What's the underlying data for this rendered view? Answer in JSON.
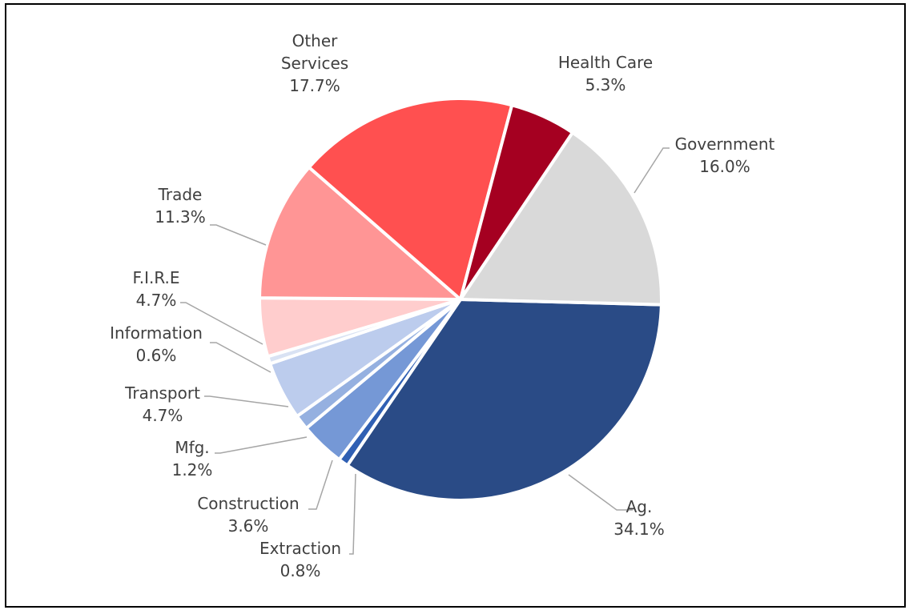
{
  "chart_data": {
    "type": "pie",
    "title": "",
    "legend": "none",
    "slices": [
      {
        "name": "Ag.",
        "label_lines": [
          "Ag."
        ],
        "value": 34.1,
        "value_label": "34.1%",
        "color": "#2a4b86"
      },
      {
        "name": "Extraction",
        "label_lines": [
          "Extraction"
        ],
        "value": 0.8,
        "value_label": "0.8%",
        "color": "#2f5fb3"
      },
      {
        "name": "Construction",
        "label_lines": [
          "Construction"
        ],
        "value": 3.6,
        "value_label": "3.6%",
        "color": "#7598d6"
      },
      {
        "name": "Mfg.",
        "label_lines": [
          "Mfg."
        ],
        "value": 1.2,
        "value_label": "1.2%",
        "color": "#95b0e0"
      },
      {
        "name": "Transport",
        "label_lines": [
          "Transport"
        ],
        "value": 4.7,
        "value_label": "4.7%",
        "color": "#bccced"
      },
      {
        "name": "Information",
        "label_lines": [
          "Information"
        ],
        "value": 0.6,
        "value_label": "0.6%",
        "color": "#d9e2f3"
      },
      {
        "name": "F.I.R.E",
        "label_lines": [
          "F.I.R.E"
        ],
        "value": 4.7,
        "value_label": "4.7%",
        "color": "#ffcdcd"
      },
      {
        "name": "Trade",
        "label_lines": [
          "Trade"
        ],
        "value": 11.3,
        "value_label": "11.3%",
        "color": "#ff9595"
      },
      {
        "name": "Other Services",
        "label_lines": [
          "Other",
          "Services"
        ],
        "value": 17.7,
        "value_label": "17.7%",
        "color": "#ff5050"
      },
      {
        "name": "Health Care",
        "label_lines": [
          "Health Care"
        ],
        "value": 5.3,
        "value_label": "5.3%",
        "color": "#a50021"
      },
      {
        "name": "Government",
        "label_lines": [
          "Government"
        ],
        "value": 16.0,
        "value_label": "16.0%",
        "color": "#d9d9d9"
      }
    ]
  }
}
